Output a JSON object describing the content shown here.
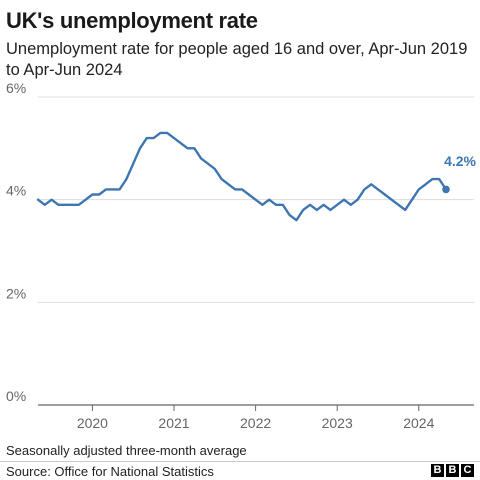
{
  "title": "UK's unemployment rate",
  "subtitle": "Unemployment rate for people aged 16 and over, Apr-Jun 2019 to Apr-Jun 2024",
  "footnote": "Seasonally adjusted three-month average",
  "source": "Source: Office for National Statistics",
  "logo": [
    "B",
    "B",
    "C"
  ],
  "colors": {
    "line": "#3d76b0",
    "grid": "#dddddd",
    "axis": "#666666",
    "text": "#222222"
  },
  "chart_data": {
    "type": "line",
    "title": "UK's unemployment rate",
    "xlabel": "",
    "ylabel": "",
    "ylim": [
      0,
      6
    ],
    "yticks": [
      "0%",
      "2%",
      "4%",
      "6%"
    ],
    "xticks": [
      "2020",
      "2021",
      "2022",
      "2023",
      "2024"
    ],
    "grid": true,
    "end_label": "4.2%",
    "series": [
      {
        "x": [
          "Apr-Jun 2019",
          "May-Jul 2019",
          "Jun-Aug 2019",
          "Jul-Sep 2019",
          "Aug-Oct 2019",
          "Sep-Nov 2019",
          "Oct-Dec 2019",
          "Nov-Jan 2020",
          "Dec-Feb 2020",
          "Jan-Mar 2020",
          "Feb-Apr 2020",
          "Mar-May 2020",
          "Apr-Jun 2020",
          "May-Jul 2020",
          "Jun-Aug 2020",
          "Jul-Sep 2020",
          "Aug-Oct 2020",
          "Sep-Nov 2020",
          "Oct-Dec 2020",
          "Nov-Jan 2021",
          "Dec-Feb 2021",
          "Jan-Mar 2021",
          "Feb-Apr 2021",
          "Mar-May 2021",
          "Apr-Jun 2021",
          "May-Jul 2021",
          "Jun-Aug 2021",
          "Jul-Sep 2021",
          "Aug-Oct 2021",
          "Sep-Nov 2021",
          "Oct-Dec 2021",
          "Nov-Jan 2022",
          "Dec-Feb 2022",
          "Jan-Mar 2022",
          "Feb-Apr 2022",
          "Mar-May 2022",
          "Apr-Jun 2022",
          "May-Jul 2022",
          "Jun-Aug 2022",
          "Jul-Sep 2022",
          "Aug-Oct 2022",
          "Sep-Nov 2022",
          "Oct-Dec 2022",
          "Nov-Jan 2023",
          "Dec-Feb 2023",
          "Jan-Mar 2023",
          "Feb-Apr 2023",
          "Mar-May 2023",
          "Apr-Jun 2023",
          "May-Jul 2023",
          "Jun-Aug 2023",
          "Jul-Sep 2023",
          "Aug-Oct 2023",
          "Sep-Nov 2023",
          "Oct-Dec 2023",
          "Nov-Jan 2024",
          "Dec-Feb 2024",
          "Jan-Mar 2024",
          "Feb-Apr 2024",
          "Mar-May 2024",
          "Apr-Jun 2024"
        ],
        "values": [
          4.0,
          3.9,
          4.0,
          3.9,
          3.9,
          3.9,
          3.9,
          4.0,
          4.1,
          4.1,
          4.2,
          4.2,
          4.2,
          4.4,
          4.7,
          5.0,
          5.2,
          5.2,
          5.3,
          5.3,
          5.2,
          5.1,
          5.0,
          5.0,
          4.8,
          4.7,
          4.6,
          4.4,
          4.3,
          4.2,
          4.2,
          4.1,
          4.0,
          3.9,
          4.0,
          3.9,
          3.9,
          3.7,
          3.6,
          3.8,
          3.9,
          3.8,
          3.9,
          3.8,
          3.9,
          4.0,
          3.9,
          4.0,
          4.2,
          4.3,
          4.2,
          4.1,
          4.0,
          3.9,
          3.8,
          4.0,
          4.2,
          4.3,
          4.4,
          4.4,
          4.2
        ]
      }
    ]
  }
}
